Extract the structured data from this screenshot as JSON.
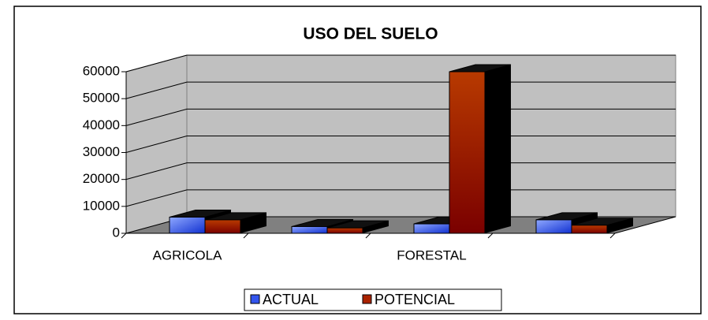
{
  "chart_data": {
    "type": "bar3d",
    "title": "USO DEL SUELO",
    "categories": [
      "AGRICOLA",
      null,
      "FORESTAL",
      null
    ],
    "series": [
      {
        "name": "ACTUAL",
        "color": "#3355ee",
        "values": [
          6000,
          2500,
          3500,
          5000
        ]
      },
      {
        "name": "POTENCIAL",
        "color": "#aa2200",
        "values": [
          5000,
          2000,
          60000,
          3000
        ]
      }
    ],
    "ylim": [
      0,
      60000
    ],
    "yticks": [
      0,
      10000,
      20000,
      30000,
      40000,
      50000,
      60000
    ],
    "grid": true,
    "legend": "bottom"
  }
}
